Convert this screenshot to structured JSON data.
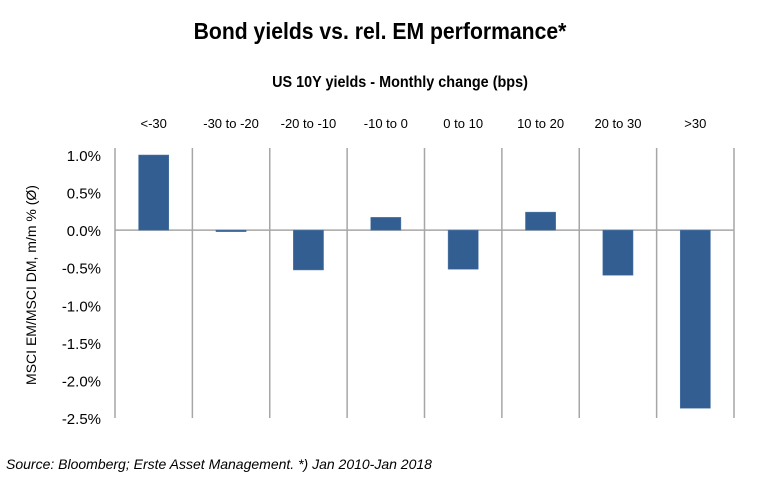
{
  "chart_data": {
    "type": "bar",
    "title": "Bond yields  vs. rel. EM performance*",
    "subtitle": "US 10Y yields  - Monthly change (bps)",
    "xlabel": "US 10Y yields - Monthly change (bps)",
    "ylabel": "MSCI EM/MSCI DM, m/m % (Ø)",
    "categories": [
      "<-30",
      "-30 to -20",
      "-20 to -10",
      "-10 to 0",
      "0 to 10",
      "10 to 20",
      "20 to 30",
      ">30"
    ],
    "values": [
      1.0,
      -0.02,
      -0.53,
      0.17,
      -0.52,
      0.24,
      -0.6,
      -2.37
    ],
    "ylim": [
      -2.5,
      1.0
    ],
    "yticks": [
      1.0,
      0.5,
      0.0,
      -0.5,
      -1.0,
      -1.5,
      -2.0,
      -2.5
    ],
    "ytick_labels": [
      "1.0%",
      "0.5%",
      "0.0%",
      "-0.5%",
      "-1.0%",
      "-1.5%",
      "-2.0%",
      "-2.5%"
    ],
    "category_axis_position": "top",
    "grid": "vertical separators between categories",
    "bar_color": "#335e91",
    "grid_color": "#a6a6a6"
  },
  "source": "Source: Bloomberg; Erste Asset Management. *) Jan 2010-Jan 2018"
}
